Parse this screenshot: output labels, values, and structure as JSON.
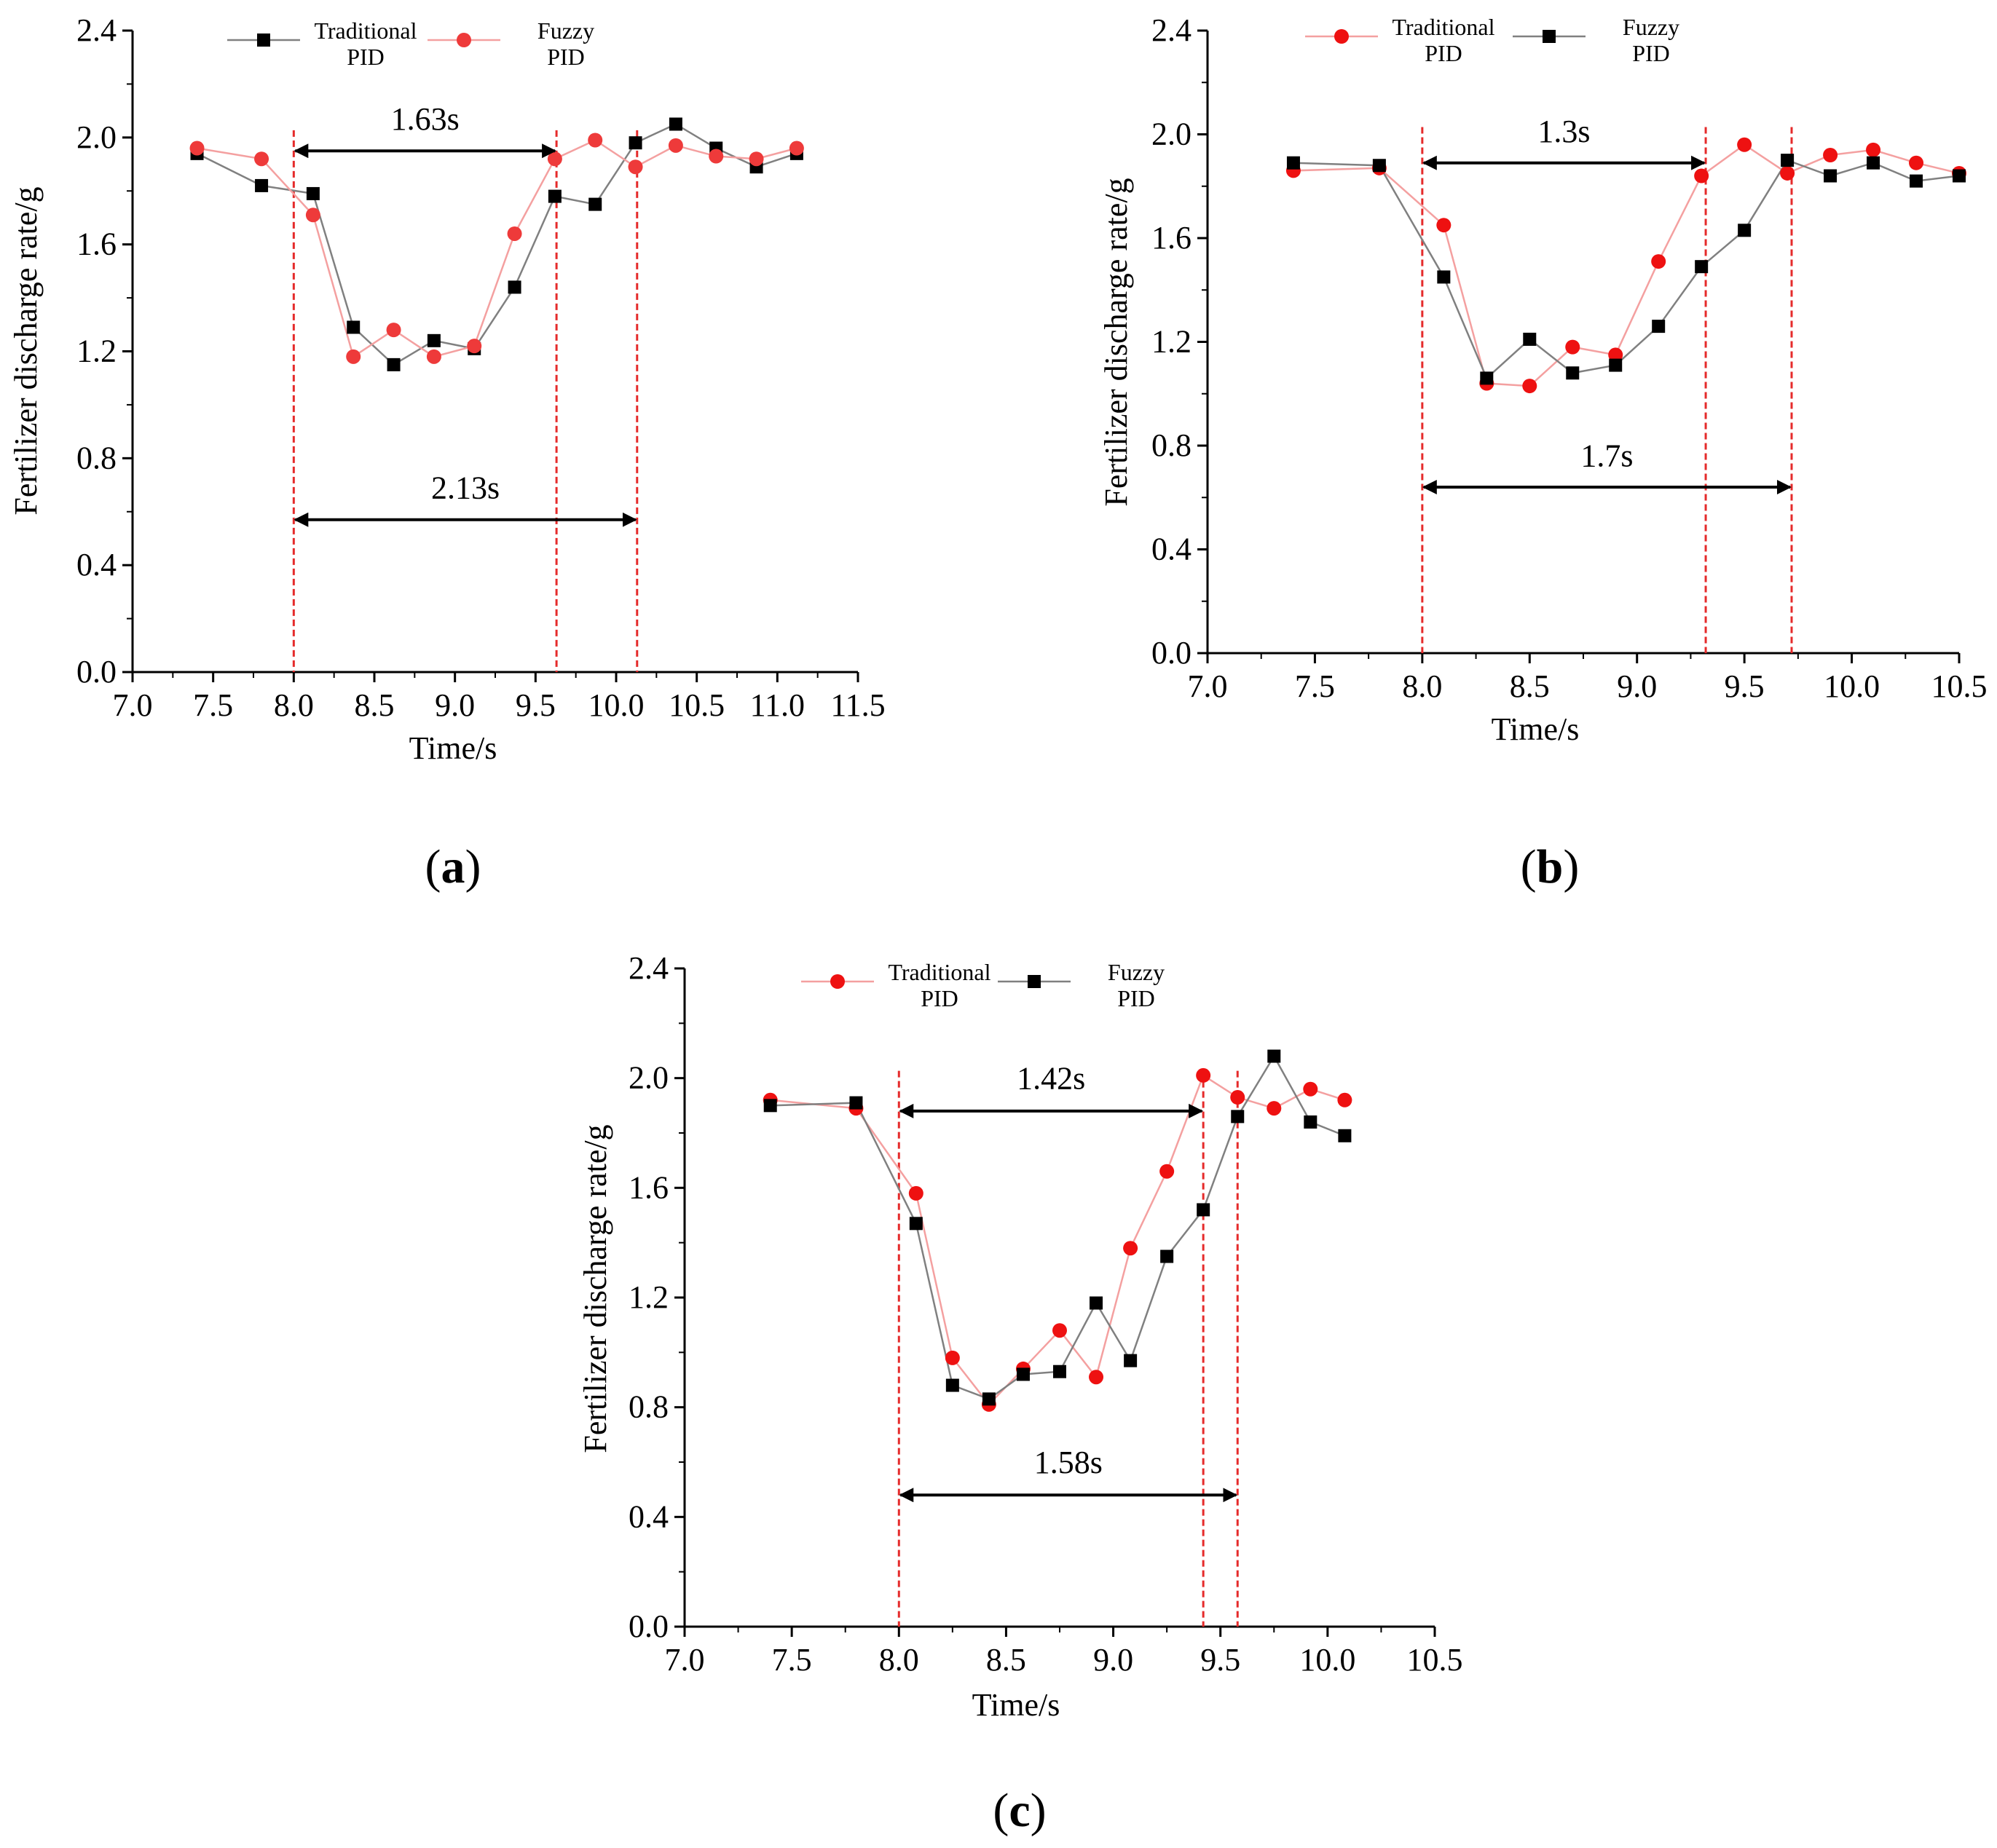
{
  "chart_data": [
    {
      "type": "line",
      "panel_label": "(a)",
      "xlabel": "Time/s",
      "ylabel": "Fertilizer discharge rate/g",
      "xlim": [
        7.0,
        11.5
      ],
      "ylim": [
        0.0,
        2.4
      ],
      "xticks": [
        "7.0",
        "7.5",
        "8.0",
        "8.5",
        "9.0",
        "9.5",
        "10.0",
        "10.5",
        "11.0",
        "11.5"
      ],
      "yticks": [
        "0.0",
        "0.4",
        "0.8",
        "1.2",
        "1.6",
        "2.0",
        "2.4"
      ],
      "legend": [
        {
          "line1": "Traditional",
          "line2": "PID",
          "series": 0
        },
        {
          "line1": "Fuzzy",
          "line2": "PID",
          "series": 1
        }
      ],
      "series": [
        {
          "name": "Traditional PID",
          "marker": "square",
          "color": "#000000",
          "line_color": "#808080",
          "x": [
            7.4,
            7.8,
            8.12,
            8.37,
            8.62,
            8.87,
            9.12,
            9.37,
            9.62,
            9.87,
            10.12,
            10.37,
            10.62,
            10.87,
            11.12
          ],
          "y": [
            1.94,
            1.82,
            1.79,
            1.29,
            1.15,
            1.24,
            1.21,
            1.44,
            1.78,
            1.75,
            1.98,
            2.05,
            1.96,
            1.89,
            1.94
          ]
        },
        {
          "name": "Fuzzy PID",
          "marker": "circle",
          "color": "#ee3a3a",
          "line_color": "#f4a0a0",
          "x": [
            7.4,
            7.8,
            8.12,
            8.37,
            8.62,
            8.87,
            9.12,
            9.37,
            9.62,
            9.87,
            10.12,
            10.37,
            10.62,
            10.87,
            11.12
          ],
          "y": [
            1.96,
            1.92,
            1.71,
            1.18,
            1.28,
            1.18,
            1.22,
            1.64,
            1.92,
            1.99,
            1.89,
            1.97,
            1.93,
            1.92,
            1.96
          ]
        }
      ],
      "vlines": [
        8.0,
        9.63,
        10.13
      ],
      "annotations": [
        {
          "text": "1.63s",
          "x1": 8.0,
          "x2": 9.63,
          "y": 1.95,
          "label_y": 2.03
        },
        {
          "text": "2.13s",
          "x1": 8.0,
          "x2": 10.13,
          "y": 0.57,
          "label_y": 0.65
        }
      ]
    },
    {
      "type": "line",
      "panel_label": "(b)",
      "xlabel": "Time/s",
      "ylabel": "Fertilizer discharge rate/g",
      "xlim": [
        7.0,
        10.5
      ],
      "ylim": [
        0.0,
        2.4
      ],
      "xticks": [
        "7.0",
        "7.5",
        "8.0",
        "8.5",
        "9.0",
        "9.5",
        "10.0",
        "10.5"
      ],
      "yticks": [
        "0.0",
        "0.4",
        "0.8",
        "1.2",
        "1.6",
        "2.0",
        "2.4"
      ],
      "legend": [
        {
          "line1": "Traditional",
          "line2": "PID",
          "series": 0
        },
        {
          "line1": "Fuzzy",
          "line2": "PID",
          "series": 1
        }
      ],
      "series": [
        {
          "name": "Traditional PID",
          "marker": "circle",
          "color": "#ee1111",
          "line_color": "#f4a0a0",
          "x": [
            7.4,
            7.8,
            8.1,
            8.3,
            8.5,
            8.7,
            8.9,
            9.1,
            9.3,
            9.5,
            9.7,
            9.9,
            10.1,
            10.3,
            10.5
          ],
          "y": [
            1.86,
            1.87,
            1.65,
            1.04,
            1.03,
            1.18,
            1.15,
            1.51,
            1.84,
            1.96,
            1.85,
            1.92,
            1.94,
            1.89,
            1.85
          ]
        },
        {
          "name": "Fuzzy PID",
          "marker": "square",
          "color": "#000000",
          "line_color": "#808080",
          "x": [
            7.4,
            7.8,
            8.1,
            8.3,
            8.5,
            8.7,
            8.9,
            9.1,
            9.3,
            9.5,
            9.7,
            9.9,
            10.1,
            10.3,
            10.5
          ],
          "y": [
            1.89,
            1.88,
            1.45,
            1.06,
            1.21,
            1.08,
            1.11,
            1.26,
            1.49,
            1.63,
            1.9,
            1.84,
            1.89,
            1.82,
            1.84
          ]
        }
      ],
      "vlines": [
        8.0,
        9.32,
        9.72
      ],
      "annotations": [
        {
          "text": "1.3s",
          "x1": 8.0,
          "x2": 9.32,
          "y": 1.89,
          "label_y": 1.97
        },
        {
          "text": "1.7s",
          "x1": 8.0,
          "x2": 9.72,
          "y": 0.64,
          "label_y": 0.72
        }
      ]
    },
    {
      "type": "line",
      "panel_label": "(c)",
      "xlabel": "Time/s",
      "ylabel": "Fertilizer discharge rate/g",
      "xlim": [
        7.0,
        10.5
      ],
      "ylim": [
        0.0,
        2.4
      ],
      "xticks": [
        "7.0",
        "7.5",
        "8.0",
        "8.5",
        "9.0",
        "9.5",
        "10.0",
        "10.5"
      ],
      "yticks": [
        "0.0",
        "0.4",
        "0.8",
        "1.2",
        "1.6",
        "2.0",
        "2.4"
      ],
      "legend": [
        {
          "line1": "Traditional",
          "line2": "PID",
          "series": 0
        },
        {
          "line1": "Fuzzy",
          "line2": "PID",
          "series": 1
        }
      ],
      "series": [
        {
          "name": "Traditional PID",
          "marker": "circle",
          "color": "#ee1111",
          "line_color": "#f4a0a0",
          "x": [
            7.4,
            7.8,
            8.08,
            8.25,
            8.42,
            8.58,
            8.75,
            8.92,
            9.08,
            9.25,
            9.42,
            9.58,
            9.75,
            9.92,
            10.08
          ],
          "y": [
            1.92,
            1.89,
            1.58,
            0.98,
            0.81,
            0.94,
            1.08,
            0.91,
            1.38,
            1.66,
            2.01,
            1.93,
            1.89,
            1.96,
            1.92
          ]
        },
        {
          "name": "Fuzzy PID",
          "marker": "square",
          "color": "#000000",
          "line_color": "#808080",
          "x": [
            7.4,
            7.8,
            8.08,
            8.25,
            8.42,
            8.58,
            8.75,
            8.92,
            9.08,
            9.25,
            9.42,
            9.58,
            9.75,
            9.92,
            10.08
          ],
          "y": [
            1.9,
            1.91,
            1.47,
            0.88,
            0.83,
            0.92,
            0.93,
            1.18,
            0.97,
            1.35,
            1.52,
            1.86,
            2.08,
            1.84,
            1.79
          ]
        }
      ],
      "vlines": [
        8.0,
        9.42,
        9.58
      ],
      "annotations": [
        {
          "text": "1.42s",
          "x1": 8.0,
          "x2": 9.42,
          "y": 1.88,
          "label_y": 1.96
        },
        {
          "text": "1.58s",
          "x1": 8.0,
          "x2": 9.58,
          "y": 0.48,
          "label_y": 0.56
        }
      ]
    }
  ]
}
